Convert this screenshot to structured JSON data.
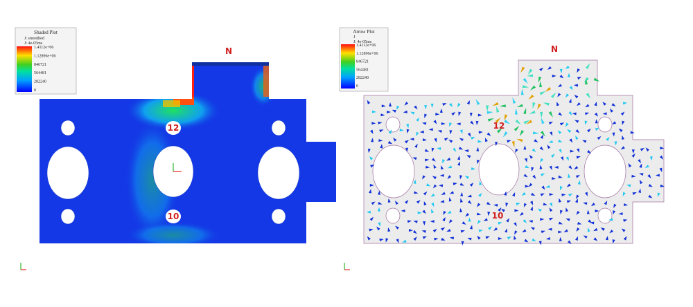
{
  "left_panel": {
    "legend": {
      "title": "Shaded Plot",
      "subtitle": "J: smoothed",
      "time": "J: 4e-05ms",
      "labels": [
        "1.4112e+06",
        "1.12896e+06",
        "846721",
        "564481",
        "282240",
        "0"
      ]
    },
    "markers": {
      "top": "N",
      "upper": "12",
      "lower": "10"
    }
  },
  "right_panel": {
    "legend": {
      "title": "Arrow Plot",
      "subtitle": "J",
      "time": "J: 4e-05ms",
      "labels": [
        "1.4112e+06",
        "1.12896e+06",
        "846721",
        "564481",
        "282240",
        "0"
      ]
    },
    "markers": {
      "top": "N",
      "upper": "12",
      "lower": "10"
    }
  }
}
